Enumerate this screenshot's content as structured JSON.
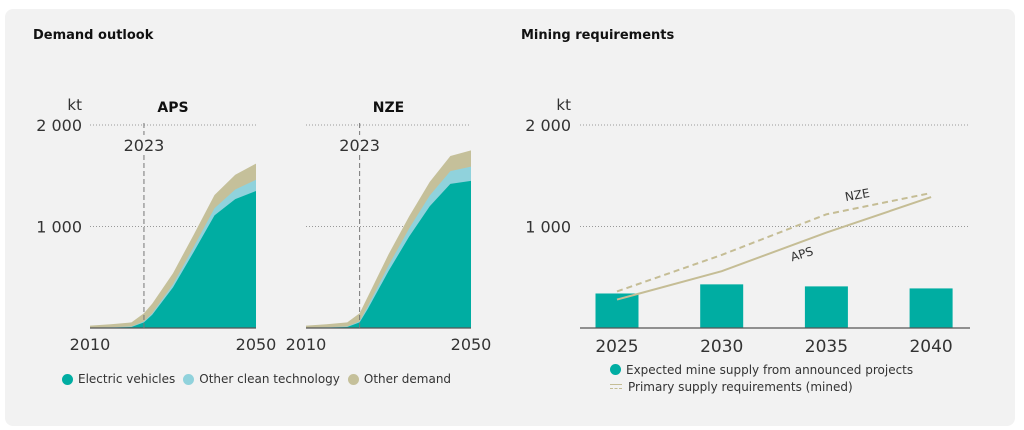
{
  "colors": {
    "ev": "#00ada2",
    "clean": "#90d2dc",
    "other": "#c5c09a",
    "line": "#c5bd95",
    "bar": "#00ada2",
    "grid": "#999999",
    "axis": "#555555",
    "text": "#222222"
  },
  "left": {
    "title": "Demand outlook",
    "unit": "kt",
    "legend": [
      {
        "label": "Electric vehicles",
        "color_key": "ev"
      },
      {
        "label": "Other clean technology",
        "color_key": "clean"
      },
      {
        "label": "Other demand",
        "color_key": "other"
      }
    ]
  },
  "right": {
    "title": "Mining requirements",
    "unit": "kt",
    "legend_bar": "Expected mine supply from announced projects",
    "legend_line": "Primary supply requirements (mined)"
  },
  "chart_data": [
    {
      "type": "area",
      "title": "APS",
      "ylabel": "kt",
      "ylim": [
        0,
        2000
      ],
      "yticks": [
        {
          "value": 1000,
          "label": "1 000"
        },
        {
          "value": 2000,
          "label": "2 000"
        }
      ],
      "xlim": [
        2010,
        2050
      ],
      "xticks": [
        {
          "value": 2010,
          "label": "2010"
        },
        {
          "value": 2050,
          "label": "2050"
        }
      ],
      "annotation": {
        "x": 2023,
        "label": "2023"
      },
      "grid": true,
      "x": [
        2010,
        2015,
        2020,
        2023,
        2025,
        2030,
        2035,
        2040,
        2045,
        2050
      ],
      "series": [
        {
          "name": "Electric vehicles",
          "values": [
            2,
            4,
            10,
            55,
            130,
            400,
            750,
            1110,
            1270,
            1350
          ]
        },
        {
          "name": "Other clean technology",
          "values": [
            2,
            3,
            5,
            10,
            15,
            30,
            50,
            70,
            95,
            110
          ]
        },
        {
          "name": "Other demand",
          "values": [
            20,
            30,
            40,
            80,
            95,
            110,
            120,
            130,
            145,
            160
          ]
        }
      ]
    },
    {
      "type": "area",
      "title": "NZE",
      "ylabel": "kt",
      "ylim": [
        0,
        2000
      ],
      "xlim": [
        2010,
        2050
      ],
      "xticks": [
        {
          "value": 2010,
          "label": "2010"
        },
        {
          "value": 2050,
          "label": "2050"
        }
      ],
      "annotation": {
        "x": 2023,
        "label": "2023"
      },
      "grid": true,
      "x": [
        2010,
        2015,
        2020,
        2023,
        2025,
        2030,
        2035,
        2040,
        2045,
        2050
      ],
      "series": [
        {
          "name": "Electric vehicles",
          "values": [
            2,
            4,
            10,
            55,
            190,
            560,
            900,
            1200,
            1420,
            1450
          ]
        },
        {
          "name": "Other clean technology",
          "values": [
            2,
            3,
            5,
            10,
            25,
            55,
            80,
            105,
            125,
            140
          ]
        },
        {
          "name": "Other demand",
          "values": [
            20,
            30,
            40,
            80,
            95,
            110,
            120,
            135,
            150,
            160
          ]
        }
      ]
    },
    {
      "type": "bar",
      "title": "Mining requirements",
      "ylabel": "kt",
      "ylim": [
        0,
        2000
      ],
      "yticks": [
        {
          "value": 1000,
          "label": "1 000"
        },
        {
          "value": 2000,
          "label": "2 000"
        }
      ],
      "categories": [
        "2025",
        "2030",
        "2035",
        "2040"
      ],
      "grid": true,
      "series": [
        {
          "name": "Expected mine supply from announced projects",
          "kind": "bar",
          "values": [
            340,
            430,
            410,
            390
          ]
        },
        {
          "name": "APS",
          "kind": "line",
          "style": "solid",
          "values": [
            280,
            560,
            940,
            1290
          ]
        },
        {
          "name": "NZE",
          "kind": "line",
          "style": "dashed",
          "values": [
            360,
            720,
            1120,
            1330
          ]
        }
      ]
    }
  ]
}
